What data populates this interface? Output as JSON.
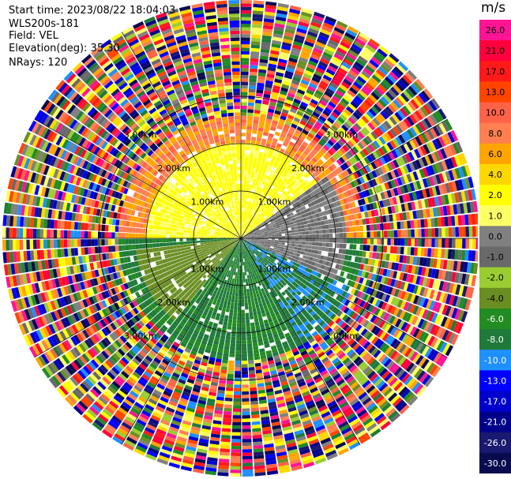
{
  "header": {
    "start_time": "Start time: 2023/08/22 18:04:03",
    "instrument": "WLS200s-181",
    "field": "Field: VEL",
    "elevation": "Elevation(deg): 35.30",
    "nrays": "NRays: 120"
  },
  "colorbar": {
    "unit": "m/s",
    "ticks": [
      "26.0",
      "21.0",
      "17.0",
      "13.0",
      "10.0",
      "8.0",
      "6.0",
      "4.0",
      "2.0",
      "1.0",
      "0.0",
      "-1.0",
      "-2.0",
      "-4.0",
      "-6.0",
      "-8.0",
      "-10.0",
      "-13.0",
      "-17.0",
      "-21.0",
      "-26.0",
      "-30.0"
    ],
    "colors": [
      "#ff1493",
      "#ff003c",
      "#ff1a1a",
      "#ff4500",
      "#ff6347",
      "#ff7f50",
      "#ffa500",
      "#ffd700",
      "#ffff00",
      "#ffff66",
      "#808080",
      "#696969",
      "#9acd32",
      "#6b8e23",
      "#228b22",
      "#1f7a3a",
      "#1e90ff",
      "#0000ff",
      "#0000cd",
      "#00008b",
      "#191970",
      "#0a0a50"
    ]
  },
  "chart_data": {
    "type": "heatmap",
    "projection": "polar PPI",
    "field": "VEL",
    "nrays": 120,
    "range_rings_km": [
      1.0,
      2.0,
      3.0
    ],
    "ring_labels": [
      "1.00km",
      "2.00km",
      "3.00km"
    ],
    "crosshair_angles_deg": [
      0,
      30,
      60,
      90,
      120,
      150,
      180,
      210,
      240,
      270,
      300,
      330
    ],
    "value_range": [
      -30.0,
      26.0
    ],
    "sectors": [
      {
        "azimuth_range_deg": [
          -90,
          90
        ],
        "range_km": [
          0,
          2.2
        ],
        "velocity_ms": 1.5
      },
      {
        "azimuth_range_deg": [
          60,
          120
        ],
        "range_km": [
          0,
          1.4
        ],
        "velocity_ms": 0.0
      },
      {
        "azimuth_range_deg": [
          90,
          270
        ],
        "range_km": [
          0,
          2.2
        ],
        "velocity_ms": -6.0
      },
      {
        "azimuth_range_deg": [
          -90,
          90
        ],
        "range_km": [
          1.5,
          2.5
        ],
        "velocity_ms": 8.0
      }
    ],
    "outer_region_note": "noise beyond ~2.5 km"
  }
}
